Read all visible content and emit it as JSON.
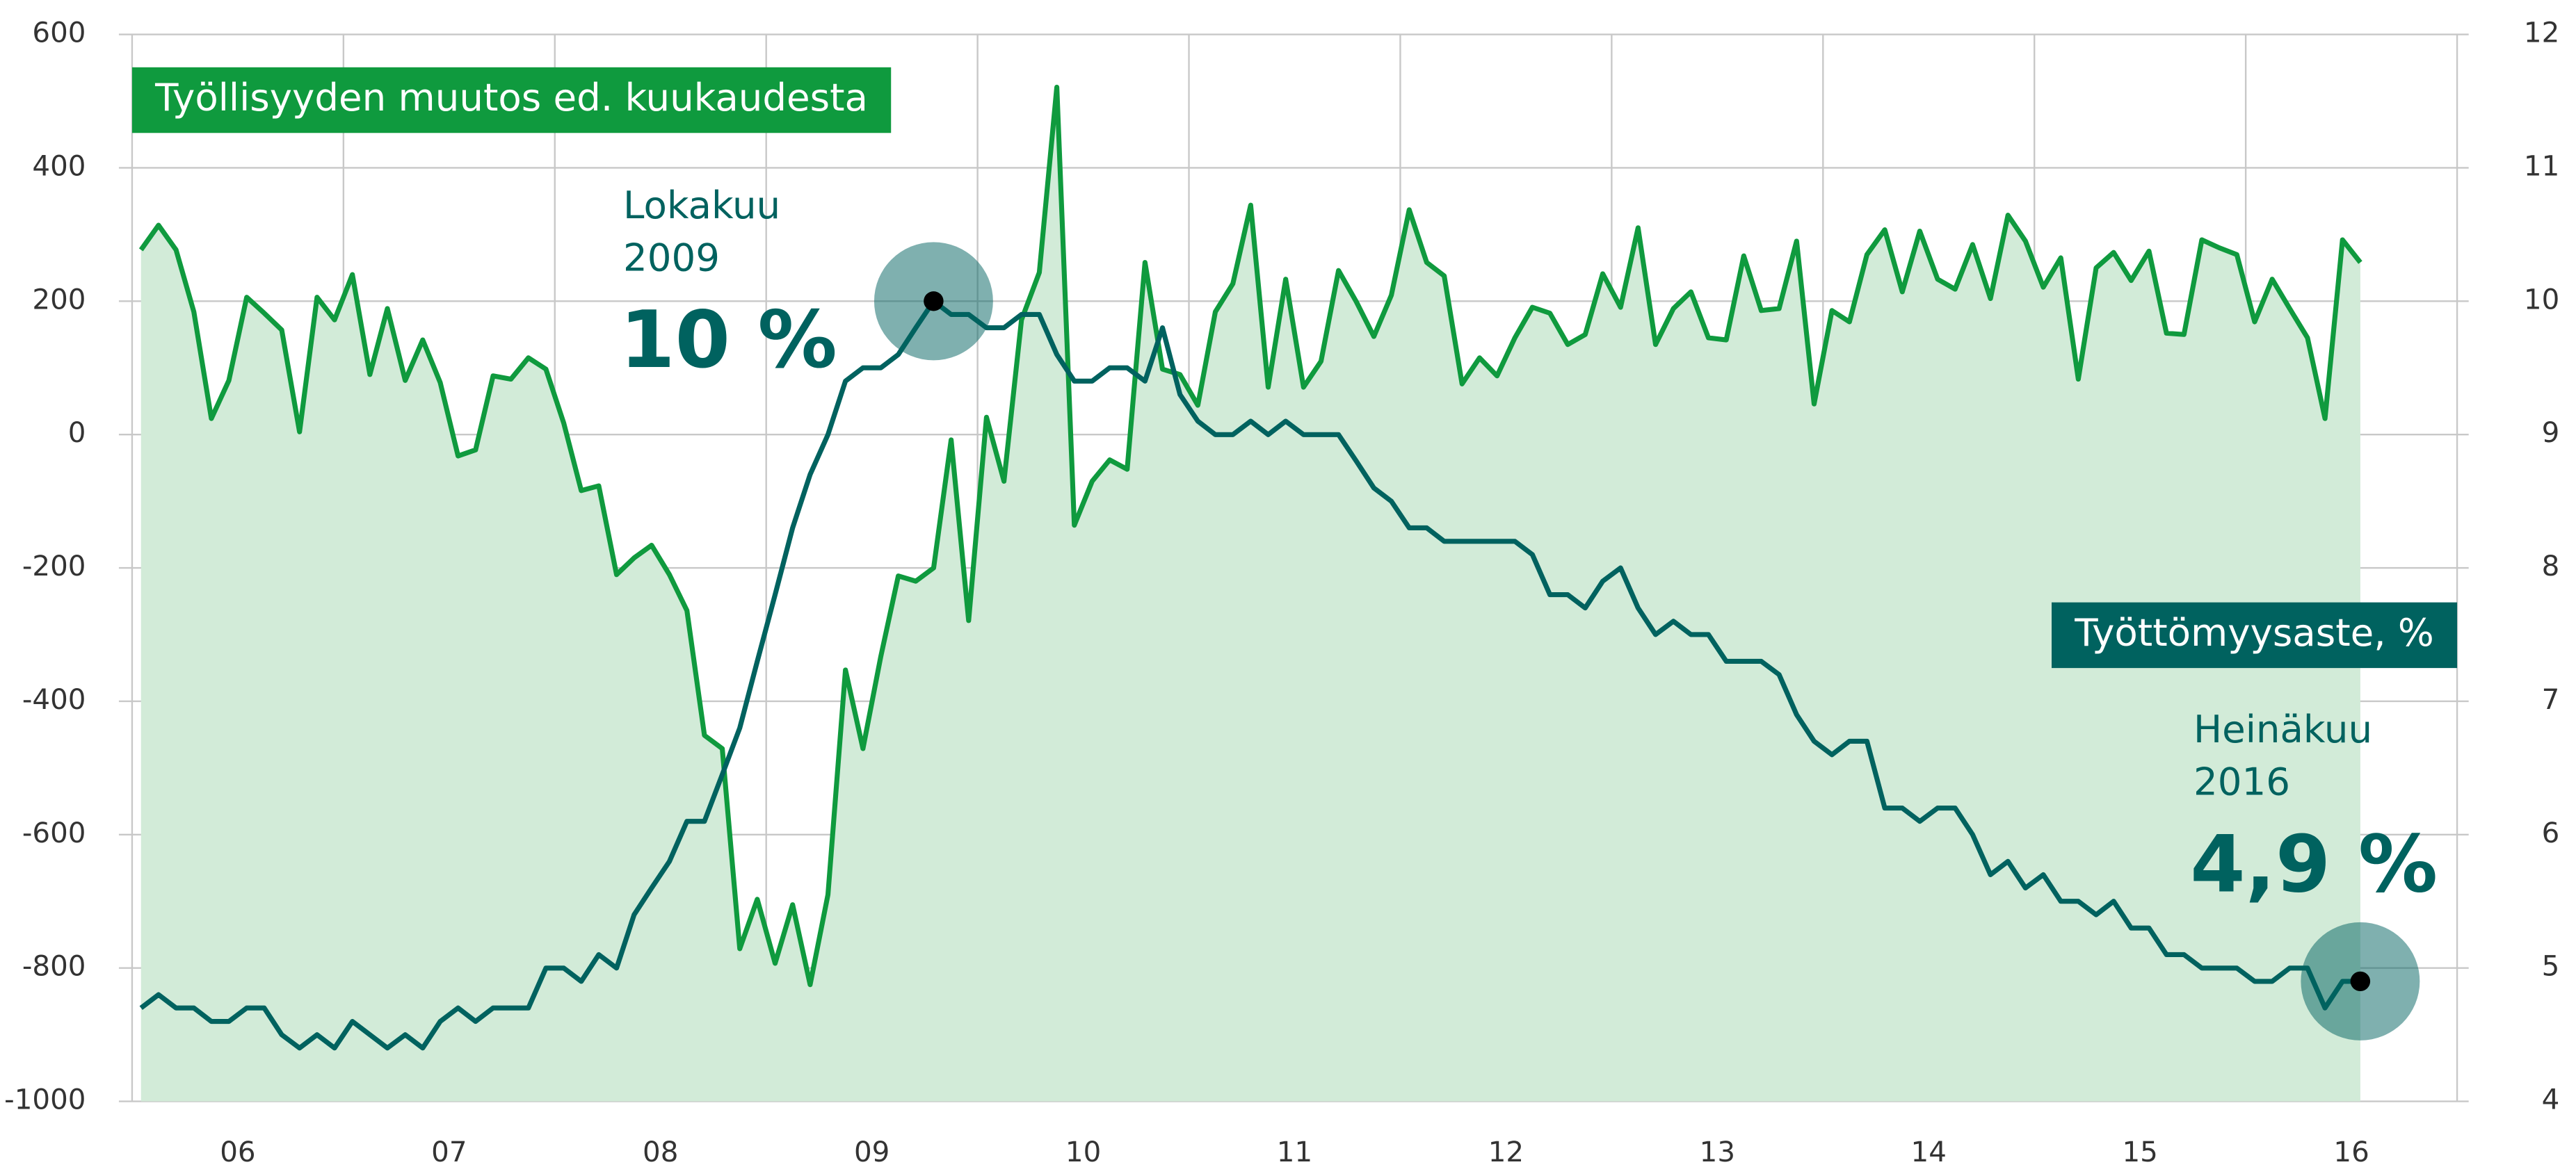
{
  "chart_data": {
    "type": "line",
    "x": [
      2006.042,
      2006.125,
      2006.208,
      2006.292,
      2006.375,
      2006.458,
      2006.542,
      2006.625,
      2006.708,
      2006.792,
      2006.875,
      2006.958,
      2007.042,
      2007.125,
      2007.208,
      2007.292,
      2007.375,
      2007.458,
      2007.542,
      2007.625,
      2007.708,
      2007.792,
      2007.875,
      2007.958,
      2008.042,
      2008.125,
      2008.208,
      2008.292,
      2008.375,
      2008.458,
      2008.542,
      2008.625,
      2008.708,
      2008.792,
      2008.875,
      2008.958,
      2009.042,
      2009.125,
      2009.208,
      2009.292,
      2009.375,
      2009.458,
      2009.542,
      2009.625,
      2009.708,
      2009.792,
      2009.875,
      2009.958,
      2010.042,
      2010.125,
      2010.208,
      2010.292,
      2010.375,
      2010.458,
      2010.542,
      2010.625,
      2010.708,
      2010.792,
      2010.875,
      2010.958,
      2011.042,
      2011.125,
      2011.208,
      2011.292,
      2011.375,
      2011.458,
      2011.542,
      2011.625,
      2011.708,
      2011.792,
      2011.875,
      2011.958,
      2012.042,
      2012.125,
      2012.208,
      2012.292,
      2012.375,
      2012.458,
      2012.542,
      2012.625,
      2012.708,
      2012.792,
      2012.875,
      2012.958,
      2013.042,
      2013.125,
      2013.208,
      2013.292,
      2013.375,
      2013.458,
      2013.542,
      2013.625,
      2013.708,
      2013.792,
      2013.875,
      2013.958,
      2014.042,
      2014.125,
      2014.208,
      2014.292,
      2014.375,
      2014.458,
      2014.542,
      2014.625,
      2014.708,
      2014.792,
      2014.875,
      2014.958,
      2015.042,
      2015.125,
      2015.208,
      2015.292,
      2015.375,
      2015.458,
      2015.542,
      2015.625,
      2015.708,
      2015.792,
      2015.875,
      2015.958,
      2016.042,
      2016.125,
      2016.208,
      2016.292,
      2016.375,
      2016.458,
      2016.542
    ],
    "series": [
      {
        "name": "Työllisyyden muutos ed. kuukaudesta",
        "color": "#0f9a3e",
        "fill": "#d2ebd8",
        "values": [
          277,
          314,
          277,
          184,
          24,
          81,
          206,
          182,
          157,
          4,
          206,
          172,
          240,
          90,
          189,
          81,
          142,
          78,
          -32,
          -23,
          88,
          83,
          115,
          98,
          17,
          -84,
          -77,
          -210,
          -185,
          -166,
          -210,
          -264,
          -451,
          -471,
          -771,
          -697,
          -793,
          -705,
          -825,
          -690,
          -353,
          -471,
          -333,
          -212,
          -220,
          -200,
          -8,
          -279,
          26,
          -70,
          172,
          243,
          521,
          -136,
          -70,
          -38,
          -52,
          258,
          98,
          90,
          44,
          184,
          226,
          344,
          71,
          233,
          71,
          110,
          246,
          199,
          147,
          209,
          337,
          258,
          238,
          76,
          115,
          88,
          145,
          191,
          182,
          135,
          150,
          241,
          191,
          310,
          135,
          189,
          214,
          145,
          142,
          268,
          186,
          189,
          290,
          46,
          186,
          169,
          270,
          307,
          214,
          305,
          233,
          218,
          285,
          204,
          329,
          290,
          221,
          265,
          83,
          250,
          273,
          231,
          275,
          152,
          150,
          292,
          280,
          270,
          169,
          233,
          189,
          145,
          24,
          292,
          258
        ]
      },
      {
        "name": "Työttömyysaste, %",
        "color": "#00625f",
        "axis": "y2",
        "values": [
          4.7,
          4.8,
          4.7,
          4.7,
          4.6,
          4.6,
          4.7,
          4.7,
          4.5,
          4.4,
          4.5,
          4.4,
          4.6,
          4.5,
          4.4,
          4.5,
          4.4,
          4.6,
          4.7,
          4.6,
          4.7,
          4.7,
          4.7,
          5.0,
          5.0,
          4.9,
          5.1,
          5.0,
          5.4,
          5.6,
          5.8,
          6.1,
          6.1,
          6.45,
          6.8,
          7.3,
          7.8,
          8.3,
          8.7,
          9.0,
          9.4,
          9.5,
          9.5,
          9.6,
          9.8,
          10.0,
          9.9,
          9.9,
          9.8,
          9.8,
          9.9,
          9.9,
          9.6,
          9.4,
          9.4,
          9.5,
          9.5,
          9.4,
          9.8,
          9.3,
          9.1,
          9.0,
          9.0,
          9.1,
          9.0,
          9.1,
          9.0,
          9.0,
          9.0,
          8.8,
          8.6,
          8.5,
          8.3,
          8.3,
          8.2,
          8.2,
          8.2,
          8.2,
          8.2,
          8.1,
          7.8,
          7.8,
          7.7,
          7.9,
          8.0,
          7.7,
          7.5,
          7.6,
          7.5,
          7.5,
          7.3,
          7.3,
          7.3,
          7.2,
          6.9,
          6.7,
          6.6,
          6.7,
          6.7,
          6.2,
          6.2,
          6.1,
          6.2,
          6.2,
          6.0,
          5.7,
          5.8,
          5.6,
          5.7,
          5.5,
          5.5,
          5.4,
          5.5,
          5.3,
          5.3,
          5.1,
          5.1,
          5.0,
          5.0,
          5.0,
          4.9,
          4.9,
          5.0,
          5.0,
          4.7,
          4.9,
          4.9
        ]
      }
    ],
    "annotations": [
      {
        "point": 45,
        "lines": [
          "Lokakuu",
          "2009"
        ],
        "label": "10 %"
      },
      {
        "point": 126,
        "lines": [
          "Heinäkuu",
          "2016"
        ],
        "label": "4,9 %"
      }
    ],
    "xlim": [
      2006,
      2017
    ],
    "xticks": [
      {
        "value": 2006,
        "label": "06"
      },
      {
        "value": 2007,
        "label": "07"
      },
      {
        "value": 2008,
        "label": "08"
      },
      {
        "value": 2009,
        "label": "09"
      },
      {
        "value": 2010,
        "label": "10"
      },
      {
        "value": 2011,
        "label": "11"
      },
      {
        "value": 2012,
        "label": "12"
      },
      {
        "value": 2013,
        "label": "13"
      },
      {
        "value": 2014,
        "label": "14"
      },
      {
        "value": 2015,
        "label": "15"
      },
      {
        "value": 2016,
        "label": "16"
      }
    ],
    "ylim": [
      -1000,
      600
    ],
    "yticks": [
      -1000,
      -800,
      -600,
      -400,
      -200,
      0,
      200,
      400,
      600
    ],
    "y2lim": [
      4,
      12
    ],
    "y2ticks": [
      4,
      5,
      6,
      7,
      8,
      9,
      10,
      11,
      12
    ],
    "grid": true
  }
}
